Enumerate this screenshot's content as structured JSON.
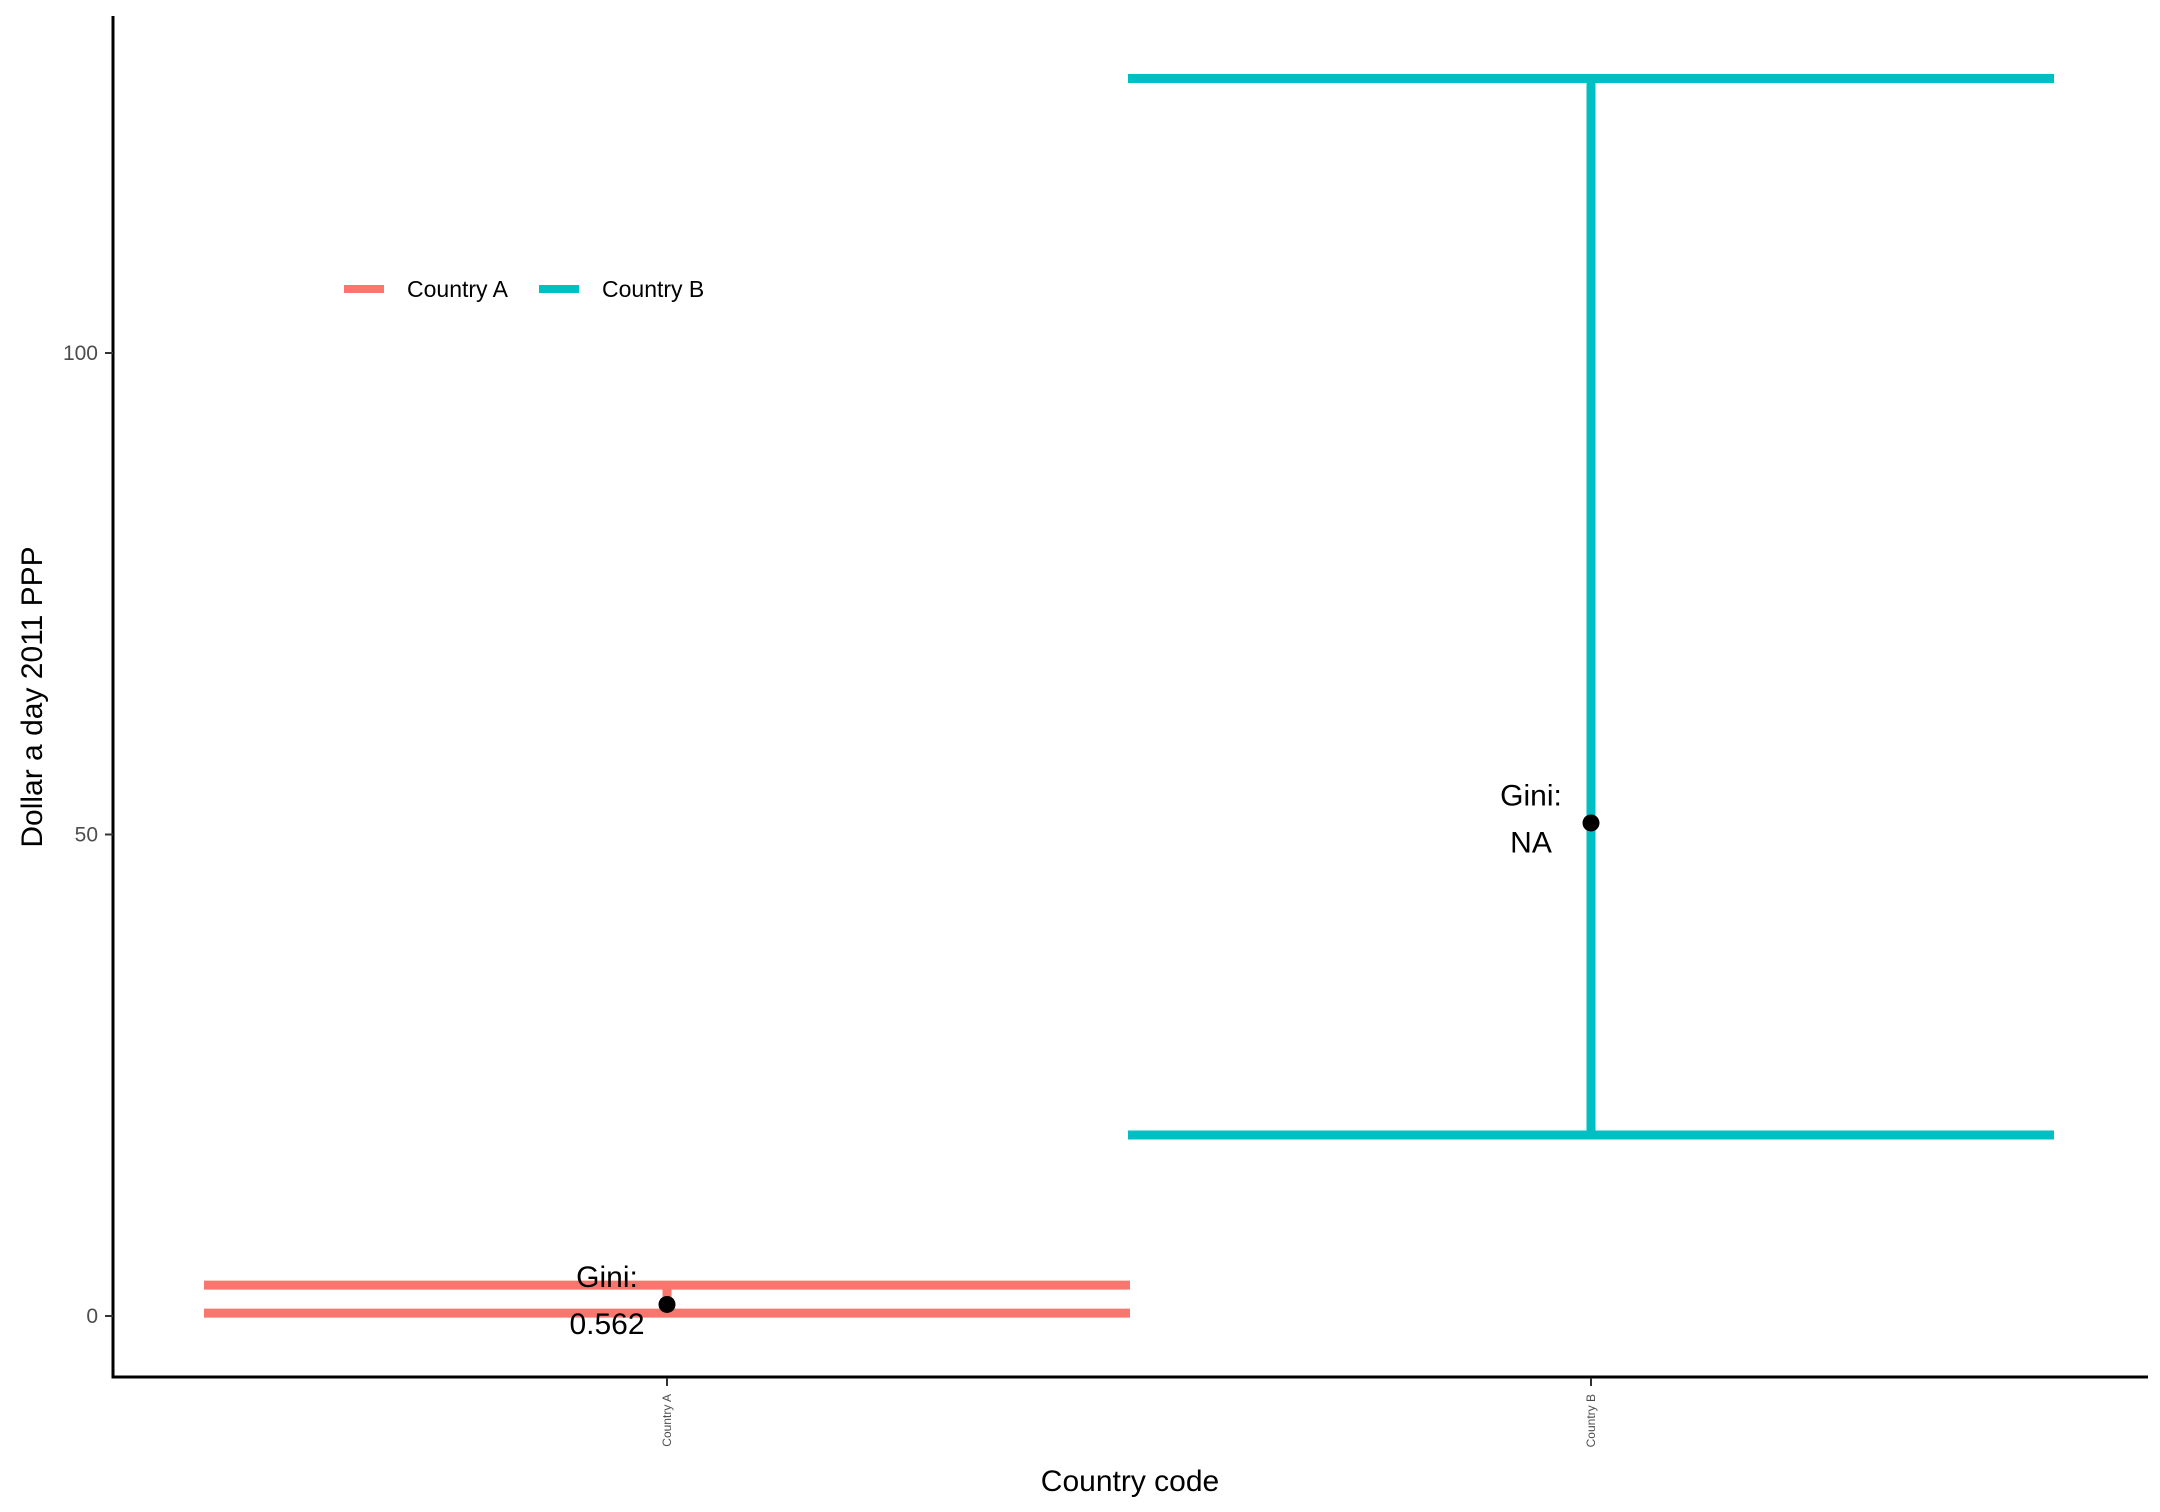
{
  "chart_data": {
    "type": "errorbar",
    "xlabel": "Country code",
    "ylabel": "Dollar a day 2011 PPP",
    "categories": [
      "Country A",
      "Country B"
    ],
    "ylim": [
      -6,
      135
    ],
    "yticks": [
      0,
      50,
      100
    ],
    "grid": false,
    "legend": {
      "position": "top-left",
      "entries": [
        "Country A",
        "Country B"
      ]
    },
    "series": [
      {
        "name": "Country A",
        "category": "Country A",
        "color": "#F8766D",
        "lower": 0.3,
        "upper": 3.2,
        "point": 1.2,
        "annotation": [
          "Gini:",
          "0.562"
        ]
      },
      {
        "name": "Country B",
        "category": "Country B",
        "color": "#00BFC4",
        "lower": 18.8,
        "upper": 128.5,
        "point": 51.2,
        "annotation": [
          "Gini:",
          "NA"
        ]
      }
    ]
  }
}
